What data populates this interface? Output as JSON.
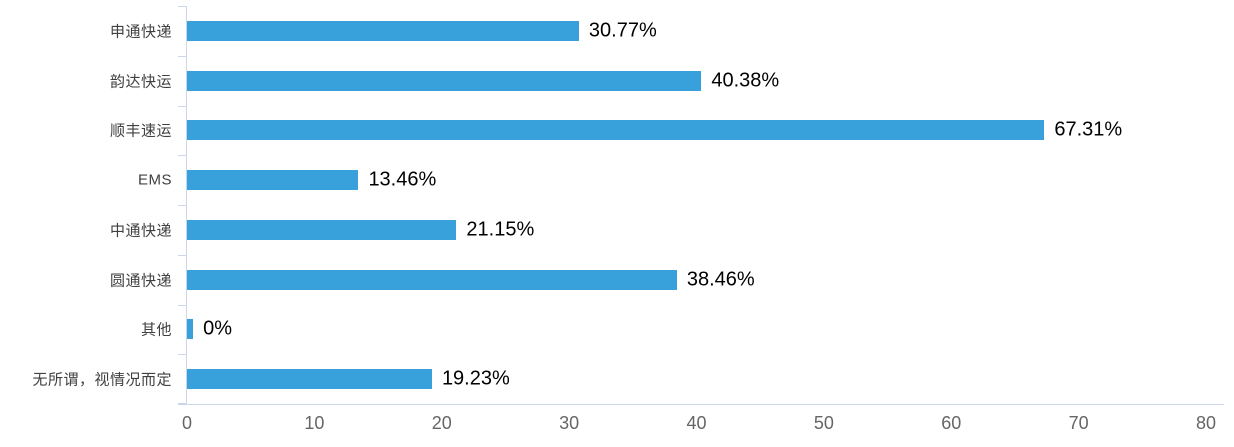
{
  "chart_data": {
    "type": "bar",
    "orientation": "horizontal",
    "title": "",
    "xlabel": "",
    "ylabel": "",
    "categories": [
      "申通快递",
      "韵达快运",
      "顺丰速运",
      "EMS",
      "中通快递",
      "圆通快递",
      "其他",
      "无所谓，视情况而定"
    ],
    "values": [
      30.77,
      40.38,
      67.31,
      13.46,
      21.15,
      38.46,
      0,
      19.23
    ],
    "value_labels": [
      "30.77%",
      "40.38%",
      "67.31%",
      "13.46%",
      "21.15%",
      "38.46%",
      "0%",
      "19.23%"
    ],
    "xlim": [
      0,
      80
    ],
    "xticks": [
      "0",
      "10",
      "20",
      "30",
      "40",
      "50",
      "60",
      "70",
      "80"
    ],
    "grid": false,
    "legend": false,
    "colors": {
      "bar": "#38a1db",
      "axis": "#ccd6eb",
      "tick_labels": "#666666",
      "category_labels": "#404040",
      "value_labels": "#000000",
      "background": "#ffffff"
    }
  }
}
